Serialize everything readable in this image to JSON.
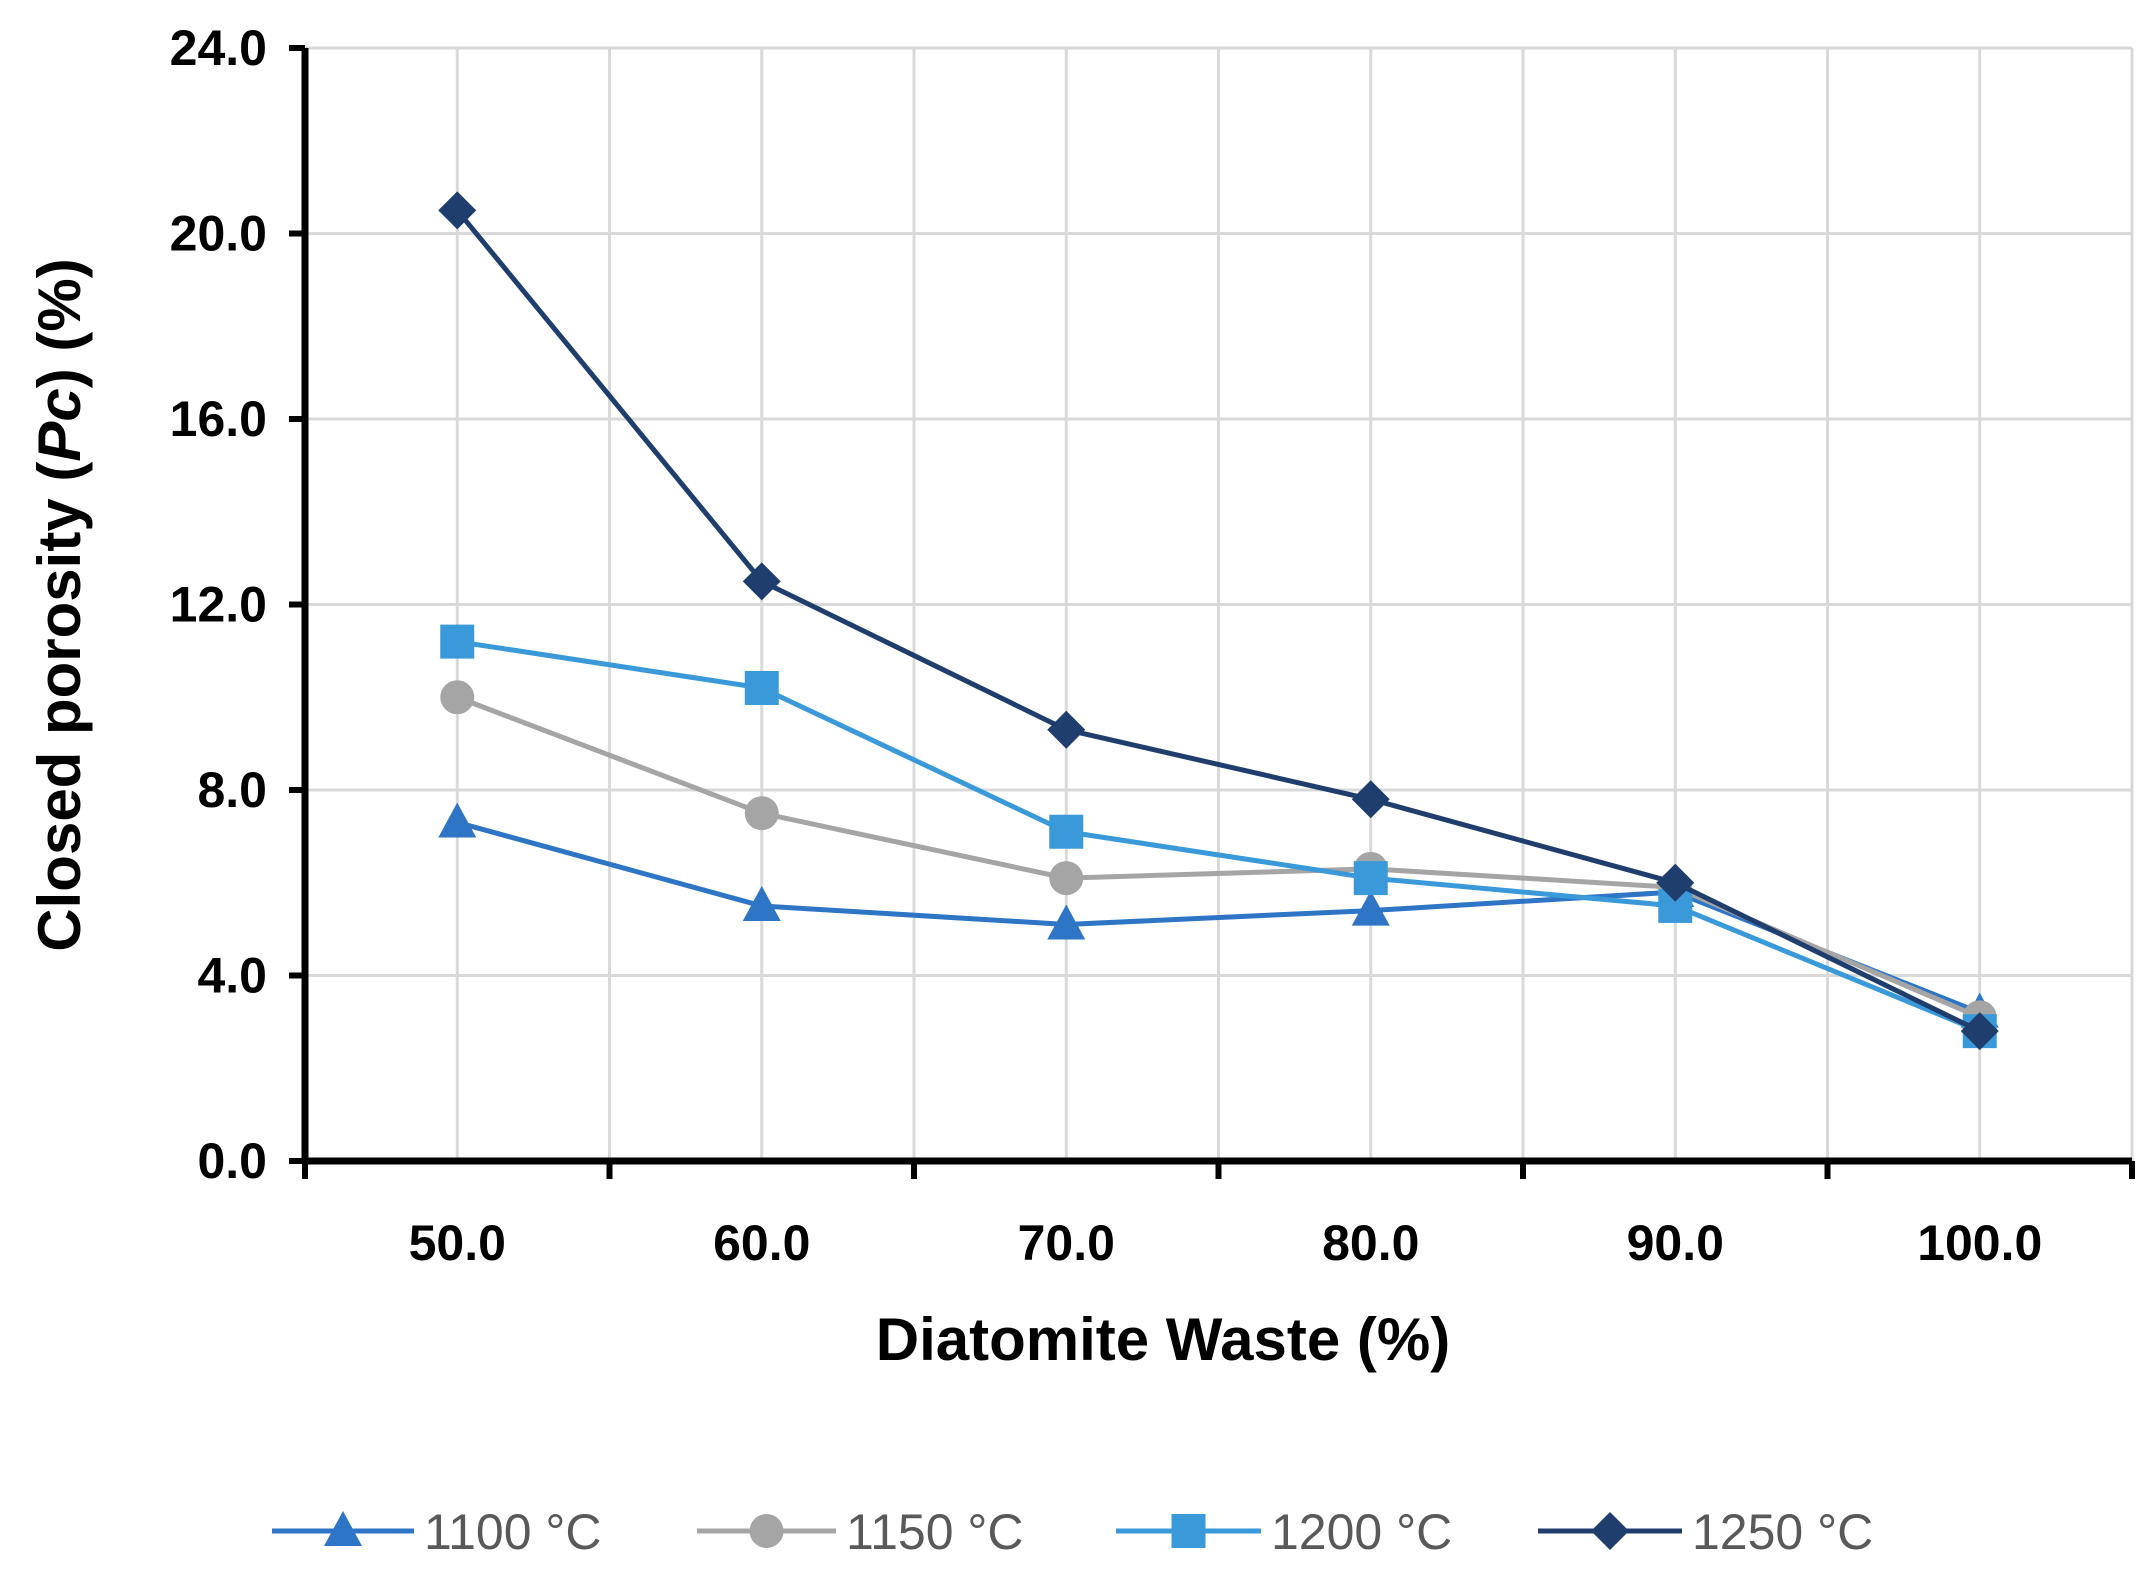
{
  "chart_data": {
    "type": "line",
    "title": "",
    "xlabel": "Diatomite Waste (%)",
    "ylabel": {
      "prefix": "Closed porosity (",
      "italic": "Pc",
      "suffix": ") (%)"
    },
    "x": [
      50,
      60,
      70,
      80,
      90,
      100
    ],
    "x_tick_labels": [
      "50.0",
      "60.0",
      "70.0",
      "80.0",
      "90.0",
      "100.0"
    ],
    "xlim": [
      45,
      105
    ],
    "ylim": [
      0,
      24
    ],
    "y_ticks": [
      0,
      4,
      8,
      12,
      16,
      20,
      24
    ],
    "y_tick_labels": [
      "0.0",
      "4.0",
      "8.0",
      "12.0",
      "16.0",
      "20.0",
      "24.0"
    ],
    "grid": true,
    "legend_position": "bottom",
    "series": [
      {
        "name": "1100 °C",
        "marker": "triangle",
        "color": "#2E75C6",
        "values": [
          7.3,
          5.5,
          5.1,
          5.4,
          5.8,
          3.2
        ]
      },
      {
        "name": "1150 °C",
        "marker": "circle",
        "color": "#A5A5A5",
        "values": [
          10.0,
          7.5,
          6.1,
          6.3,
          5.9,
          3.1
        ]
      },
      {
        "name": "1200 °C",
        "marker": "square",
        "color": "#3A9AD9",
        "values": [
          11.2,
          10.2,
          7.1,
          6.1,
          5.5,
          2.8
        ]
      },
      {
        "name": "1250 °C",
        "marker": "diamond",
        "color": "#1F3E6E",
        "values": [
          20.5,
          12.5,
          9.3,
          7.8,
          6.0,
          2.8
        ]
      }
    ]
  }
}
